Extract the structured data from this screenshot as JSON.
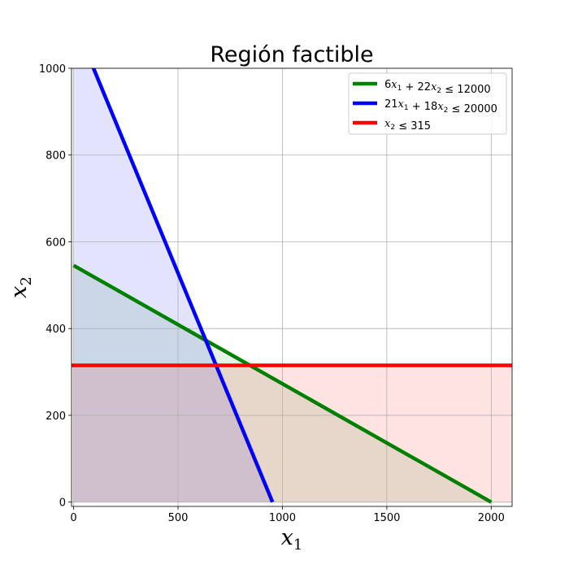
{
  "chart_data": {
    "type": "line",
    "title": "Región factible",
    "xlabel": "x1",
    "ylabel": "x2",
    "xlim": [
      -10,
      2100
    ],
    "ylim": [
      -10,
      1000
    ],
    "xticks": [
      "0",
      "500",
      "1000",
      "1500",
      "2000"
    ],
    "yticks": [
      "0",
      "200",
      "400",
      "600",
      "800",
      "1000"
    ],
    "grid": true,
    "legend_position": "top-right",
    "series": [
      {
        "name": "6x1 + 22x2 ≤ 12000",
        "legend": [
          "6",
          "x",
          "1",
          " + 22",
          "x",
          "2",
          " ≤ 12000"
        ],
        "color": "#008000",
        "fill": "rgba(0,128,0,0.10)",
        "x": [
          0,
          2000
        ],
        "y": [
          545.45,
          0
        ]
      },
      {
        "name": "21x1 + 18x2 ≤ 20000",
        "legend": [
          "21",
          "x",
          "1",
          " + 18",
          "x",
          "2",
          " ≤ 20000"
        ],
        "color": "#0000ff",
        "fill": "rgba(0,0,255,0.11)",
        "x": [
          0,
          952.38
        ],
        "y": [
          1111.11,
          0
        ]
      },
      {
        "name": "x2 ≤ 315",
        "legend": [
          "",
          "x",
          "2",
          " ≤ 315"
        ],
        "color": "#ff0000",
        "fill": "rgba(255,0,0,0.11)",
        "x": [
          -10,
          2100
        ],
        "y": [
          315,
          315
        ]
      }
    ]
  }
}
